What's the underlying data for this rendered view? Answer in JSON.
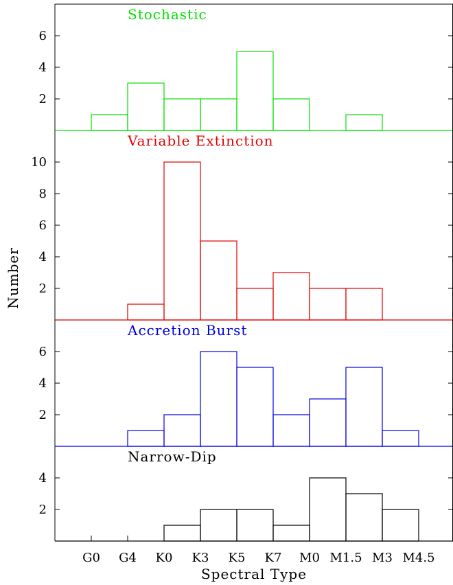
{
  "chart_data": {
    "type": "bar",
    "xlabel": "Spectral Type",
    "ylabel": "Number",
    "categories": [
      "G0",
      "G4",
      "K0",
      "K3",
      "K5",
      "K7",
      "M0",
      "M1.5",
      "M3",
      "M4.5"
    ],
    "panels": [
      {
        "title": "Stochastic",
        "color": "#00e000",
        "ylim": [
          0,
          8
        ],
        "yticks": [
          2,
          4,
          6
        ],
        "bins": [
          {
            "from": "G0",
            "to": "G4",
            "value": 1
          },
          {
            "from": "G4",
            "to": "K0",
            "value": 3
          },
          {
            "from": "K0",
            "to": "K3",
            "value": 2
          },
          {
            "from": "K3",
            "to": "K5",
            "value": 2
          },
          {
            "from": "K5",
            "to": "K7",
            "value": 5
          },
          {
            "from": "K7",
            "to": "M0",
            "value": 2
          },
          {
            "from": "M0",
            "to": "M1.5",
            "value": 0
          },
          {
            "from": "M1.5",
            "to": "M3",
            "value": 1
          }
        ]
      },
      {
        "title": "Variable Extinction",
        "color": "#e00000",
        "ylim": [
          0,
          12
        ],
        "yticks": [
          2,
          4,
          6,
          8,
          10
        ],
        "bins": [
          {
            "from": "G4",
            "to": "K0",
            "value": 1
          },
          {
            "from": "K0",
            "to": "K3",
            "value": 10
          },
          {
            "from": "K3",
            "to": "K5",
            "value": 5
          },
          {
            "from": "K5",
            "to": "K7",
            "value": 2
          },
          {
            "from": "K7",
            "to": "M0",
            "value": 3
          },
          {
            "from": "M0",
            "to": "M1.5",
            "value": 2
          },
          {
            "from": "M1.5",
            "to": "M3",
            "value": 2
          }
        ]
      },
      {
        "title": "Accretion Burst",
        "color": "#0000e0",
        "ylim": [
          0,
          8
        ],
        "yticks": [
          2,
          4,
          6
        ],
        "bins": [
          {
            "from": "G4",
            "to": "K0",
            "value": 1
          },
          {
            "from": "K0",
            "to": "K3",
            "value": 2
          },
          {
            "from": "K3",
            "to": "K5",
            "value": 6
          },
          {
            "from": "K5",
            "to": "K7",
            "value": 5
          },
          {
            "from": "K7",
            "to": "M0",
            "value": 2
          },
          {
            "from": "M0",
            "to": "M1.5",
            "value": 3
          },
          {
            "from": "M1.5",
            "to": "M3",
            "value": 5
          },
          {
            "from": "M3",
            "to": "M4.5",
            "value": 1
          }
        ]
      },
      {
        "title": "Narrow-Dip",
        "color": "#000000",
        "ylim": [
          0,
          6
        ],
        "yticks": [
          2,
          4
        ],
        "bins": [
          {
            "from": "K0",
            "to": "K3",
            "value": 1
          },
          {
            "from": "K3",
            "to": "K5",
            "value": 2
          },
          {
            "from": "K5",
            "to": "K7",
            "value": 2
          },
          {
            "from": "K7",
            "to": "M0",
            "value": 1
          },
          {
            "from": "M0",
            "to": "M1.5",
            "value": 4
          },
          {
            "from": "M1.5",
            "to": "M3",
            "value": 3
          },
          {
            "from": "M3",
            "to": "M4.5",
            "value": 2
          }
        ]
      }
    ]
  }
}
